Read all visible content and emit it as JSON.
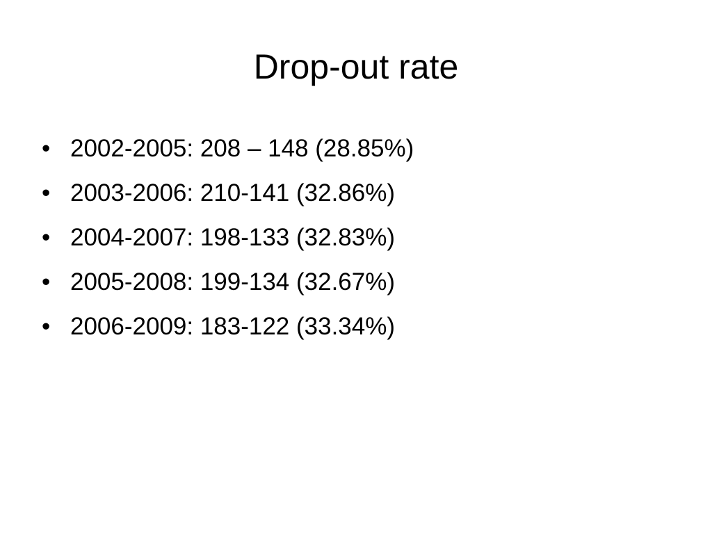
{
  "slide": {
    "title": "Drop-out rate",
    "bullet_symbol": "•",
    "items": [
      "2002-2005: 208 – 148 (28.85%)",
      "2003-2006: 210-141 (32.86%)",
      "2004-2007: 198-133 (32.83%)",
      "2005-2008: 199-134 (32.67%)",
      "2006-2009: 183-122 (33.34%)"
    ]
  }
}
